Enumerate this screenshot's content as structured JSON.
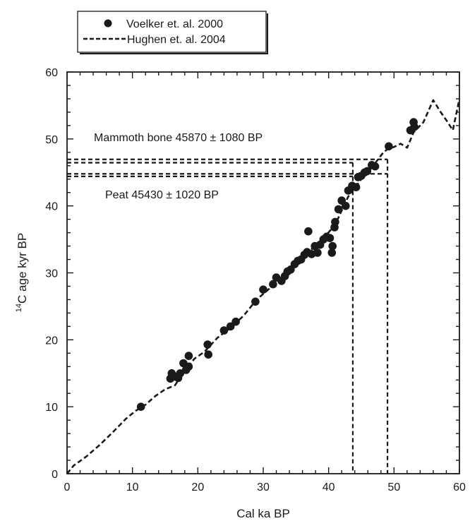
{
  "chart_data": {
    "type": "scatter",
    "title": "",
    "xlabel": "Cal ka BP",
    "ylabel_sup": "14",
    "ylabel_main": "C age kyr BP",
    "xlim": [
      0,
      60
    ],
    "ylim": [
      0,
      60
    ],
    "x_ticks": [
      0,
      10,
      20,
      30,
      40,
      50,
      60
    ],
    "y_ticks": [
      0,
      10,
      20,
      30,
      40,
      50,
      60
    ],
    "x_tick_labels": [
      "0",
      "10",
      "20",
      "30",
      "40",
      "50",
      "60"
    ],
    "y_tick_labels": [
      "0",
      "10",
      "20",
      "30",
      "40",
      "50",
      "60"
    ],
    "grid": false,
    "legend_position": "top-left, above plot",
    "series": [
      {
        "name": "Voelker et. al. 2000",
        "style": "filled-circle",
        "color": "#1a1a1a",
        "points": [
          [
            11.3,
            10.0
          ],
          [
            15.8,
            14.2
          ],
          [
            16.0,
            15.0
          ],
          [
            16.5,
            14.5
          ],
          [
            17.0,
            14.3
          ],
          [
            17.3,
            15.0
          ],
          [
            17.8,
            16.5
          ],
          [
            18.2,
            15.5
          ],
          [
            18.6,
            17.6
          ],
          [
            18.6,
            16.0
          ],
          [
            21.5,
            19.3
          ],
          [
            21.6,
            17.8
          ],
          [
            24.0,
            21.4
          ],
          [
            25.0,
            22.0
          ],
          [
            25.8,
            22.7
          ],
          [
            28.8,
            25.7
          ],
          [
            30.0,
            27.5
          ],
          [
            31.5,
            28.3
          ],
          [
            32.0,
            29.3
          ],
          [
            32.8,
            28.8
          ],
          [
            33.3,
            29.5
          ],
          [
            33.7,
            30.2
          ],
          [
            34.2,
            30.5
          ],
          [
            34.8,
            31.3
          ],
          [
            35.3,
            31.8
          ],
          [
            35.8,
            32.0
          ],
          [
            36.3,
            32.7
          ],
          [
            36.7,
            33.1
          ],
          [
            36.9,
            36.2
          ],
          [
            37.4,
            32.8
          ],
          [
            37.9,
            34.0
          ],
          [
            38.3,
            33.0
          ],
          [
            38.7,
            34.2
          ],
          [
            39.2,
            35.0
          ],
          [
            39.7,
            35.4
          ],
          [
            40.2,
            35.2
          ],
          [
            40.5,
            33.0
          ],
          [
            40.6,
            34.0
          ],
          [
            40.9,
            36.8
          ],
          [
            41.0,
            37.6
          ],
          [
            41.5,
            39.5
          ],
          [
            42.0,
            40.8
          ],
          [
            42.6,
            40.0
          ],
          [
            43.0,
            42.3
          ],
          [
            43.6,
            43.0
          ],
          [
            44.2,
            42.8
          ],
          [
            44.5,
            44.3
          ],
          [
            45.0,
            44.5
          ],
          [
            45.5,
            45.0
          ],
          [
            45.9,
            45.2
          ],
          [
            46.6,
            46.1
          ],
          [
            47.1,
            45.9
          ],
          [
            49.2,
            48.9
          ],
          [
            52.5,
            51.3
          ],
          [
            53.0,
            52.5
          ],
          [
            53.1,
            51.8
          ]
        ]
      },
      {
        "name": "Hughen et. al. 2004",
        "style": "dashed-line",
        "color": "#1a1a1a",
        "points": [
          [
            0.0,
            0.0
          ],
          [
            1.0,
            1.2
          ],
          [
            3.0,
            2.6
          ],
          [
            5.0,
            4.3
          ],
          [
            7.0,
            6.2
          ],
          [
            9.0,
            8.2
          ],
          [
            10.5,
            9.4
          ],
          [
            12.0,
            10.3
          ],
          [
            13.5,
            11.6
          ],
          [
            15.0,
            12.6
          ],
          [
            16.5,
            13.2
          ],
          [
            18.0,
            15.4
          ],
          [
            19.5,
            17.2
          ],
          [
            21.0,
            18.2
          ],
          [
            23.0,
            20.3
          ],
          [
            25.0,
            21.8
          ],
          [
            27.0,
            23.6
          ],
          [
            29.0,
            26.0
          ],
          [
            31.0,
            27.7
          ],
          [
            33.0,
            29.4
          ],
          [
            35.0,
            31.4
          ],
          [
            37.0,
            33.2
          ],
          [
            39.0,
            34.9
          ],
          [
            41.0,
            37.2
          ],
          [
            43.0,
            41.4
          ],
          [
            45.0,
            44.0
          ],
          [
            46.0,
            45.0
          ],
          [
            46.8,
            46.0
          ],
          [
            47.6,
            47.0
          ],
          [
            48.3,
            47.9
          ],
          [
            49.0,
            48.5
          ],
          [
            50.0,
            48.8
          ],
          [
            51.0,
            49.3
          ],
          [
            52.0,
            48.7
          ],
          [
            53.0,
            51.0
          ],
          [
            54.5,
            52.5
          ],
          [
            56.0,
            55.8
          ],
          [
            57.0,
            54.2
          ],
          [
            58.0,
            52.8
          ],
          [
            59.0,
            51.3
          ],
          [
            60.0,
            56.0
          ]
        ]
      }
    ],
    "reference_lines": [
      {
        "label": "Mammoth bone 45870 ± 1080 BP",
        "levels": [
          44.79,
          46.95
        ],
        "cal_x": 49.0
      },
      {
        "label": "Peat 45430 ± 1020 BP",
        "levels": [
          44.41,
          46.45
        ],
        "cal_x": 43.7
      }
    ]
  }
}
